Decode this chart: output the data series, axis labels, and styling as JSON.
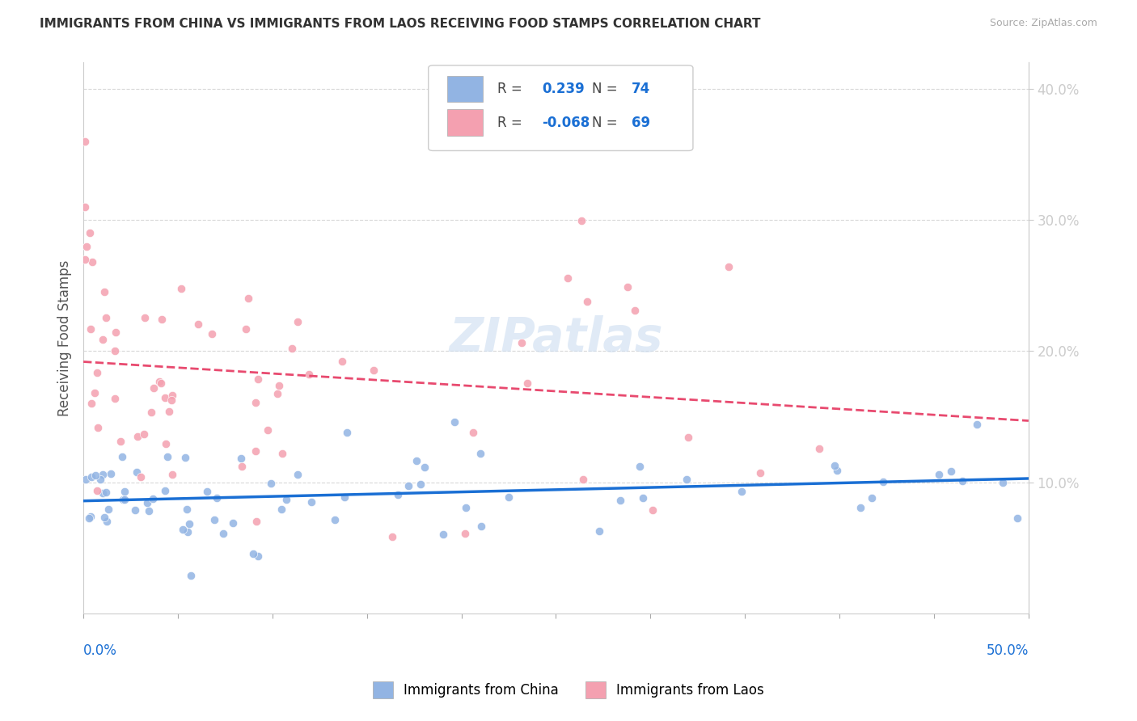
{
  "title": "IMMIGRANTS FROM CHINA VS IMMIGRANTS FROM LAOS RECEIVING FOOD STAMPS CORRELATION CHART",
  "source": "Source: ZipAtlas.com",
  "ylabel": "Receiving Food Stamps",
  "china_R": 0.239,
  "china_N": 74,
  "laos_R": -0.068,
  "laos_N": 69,
  "china_color": "#92b4e3",
  "laos_color": "#f4a0b0",
  "china_line_color": "#1a6fd4",
  "laos_line_color": "#e84a6f",
  "watermark": "ZIPatlas",
  "background_color": "#ffffff",
  "grid_color": "#d8d8d8"
}
